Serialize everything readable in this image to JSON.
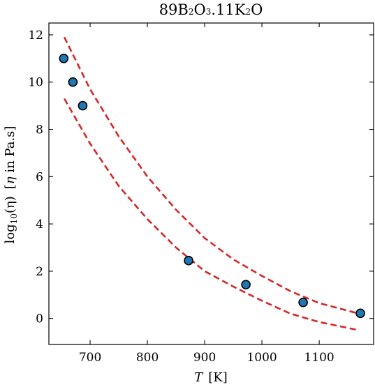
{
  "chart_data": {
    "type": "scatter",
    "title": {
      "prefix": "89B",
      "s1": "2",
      "mid1": "O",
      "s2": "3",
      "mid2": ".11K",
      "s3": "2",
      "suffix": "O"
    },
    "xlabel": {
      "var": "T",
      "unit": "[K]"
    },
    "ylabel": {
      "log": "log",
      "base": "10",
      "arg": "(η)",
      "open": "[",
      "eta": "η",
      "unit": " in Pa.s]"
    },
    "xlim": [
      628,
      1195
    ],
    "ylim": [
      -1.1,
      12.5
    ],
    "xticks": [
      700,
      800,
      900,
      1000,
      1100
    ],
    "yticks": [
      0,
      2,
      4,
      6,
      8,
      10,
      12
    ],
    "grid": false,
    "points": {
      "x": [
        654,
        670,
        687,
        872,
        972,
        1072,
        1172
      ],
      "y": [
        11.0,
        10.0,
        9.0,
        2.45,
        1.43,
        0.68,
        0.22
      ]
    },
    "fit_curves": [
      {
        "x": [
          655,
          700,
          750,
          800,
          850,
          900,
          950,
          1000,
          1050,
          1100,
          1170
        ],
        "y": [
          11.9,
          9.7,
          7.7,
          6.0,
          4.6,
          3.4,
          2.5,
          1.8,
          1.15,
          0.65,
          0.2
        ]
      },
      {
        "x": [
          655,
          700,
          750,
          800,
          850,
          900,
          950,
          1000,
          1050,
          1100,
          1170
        ],
        "y": [
          9.3,
          7.4,
          5.6,
          4.2,
          3.0,
          2.0,
          1.35,
          0.75,
          0.2,
          -0.15,
          -0.5
        ]
      }
    ],
    "colors": {
      "point_fill": "#1f77b4",
      "point_edge": "#000000",
      "curve": "#d62728"
    }
  }
}
